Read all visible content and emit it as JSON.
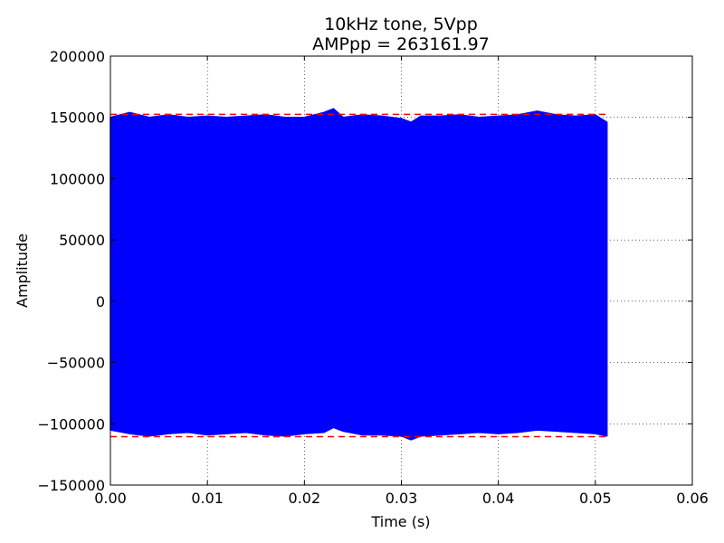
{
  "chart_data": {
    "type": "area",
    "title": "10kHz tone, 5Vpp",
    "subtitle": "AMPpp = 263161.97",
    "xlabel": "Time (s)",
    "ylabel": "Amplitude",
    "xlim": [
      0.0,
      0.06
    ],
    "ylim": [
      -150000,
      200000
    ],
    "x_ticks": [
      0.0,
      0.01,
      0.02,
      0.03,
      0.04,
      0.05,
      0.06
    ],
    "x_tick_labels": [
      "0.00",
      "0.01",
      "0.02",
      "0.03",
      "0.04",
      "0.05",
      "0.06"
    ],
    "y_ticks": [
      -150000,
      -100000,
      -50000,
      0,
      50000,
      100000,
      150000,
      200000
    ],
    "y_tick_labels": [
      "−150000",
      "−100000",
      "−50000",
      "0",
      "50000",
      "100000",
      "150000",
      "200000"
    ],
    "grid": true,
    "series": [
      {
        "color": "#0000ff",
        "x": [
          0.0,
          0.002,
          0.004,
          0.006,
          0.008,
          0.01,
          0.012,
          0.014,
          0.016,
          0.018,
          0.02,
          0.022,
          0.023,
          0.024,
          0.026,
          0.028,
          0.03,
          0.031,
          0.032,
          0.034,
          0.036,
          0.038,
          0.04,
          0.042,
          0.044,
          0.046,
          0.048,
          0.05,
          0.0512
        ],
        "upper": [
          150000,
          154000,
          150000,
          152000,
          150000,
          151000,
          150000,
          151000,
          152000,
          150000,
          150000,
          154000,
          157000,
          150000,
          152000,
          151000,
          149000,
          146000,
          151000,
          151000,
          152000,
          150000,
          151000,
          152000,
          155000,
          152000,
          151000,
          152000,
          146000
        ],
        "lower": [
          -105000,
          -108000,
          -110000,
          -108000,
          -107000,
          -109000,
          -108000,
          -107000,
          -109000,
          -110000,
          -108000,
          -107000,
          -103000,
          -106000,
          -109000,
          -109000,
          -110000,
          -113000,
          -110000,
          -109000,
          -108000,
          -107000,
          -108000,
          -107000,
          -105000,
          -106000,
          -107000,
          -108000,
          -110000
        ]
      }
    ],
    "reference_lines": [
      {
        "y": 152500,
        "color": "#ff0000",
        "style": "dashed",
        "x_range": [
          0.0,
          0.0512
        ]
      },
      {
        "y": -110500,
        "color": "#ff0000",
        "style": "dashed",
        "x_range": [
          0.0,
          0.0512
        ]
      }
    ]
  }
}
